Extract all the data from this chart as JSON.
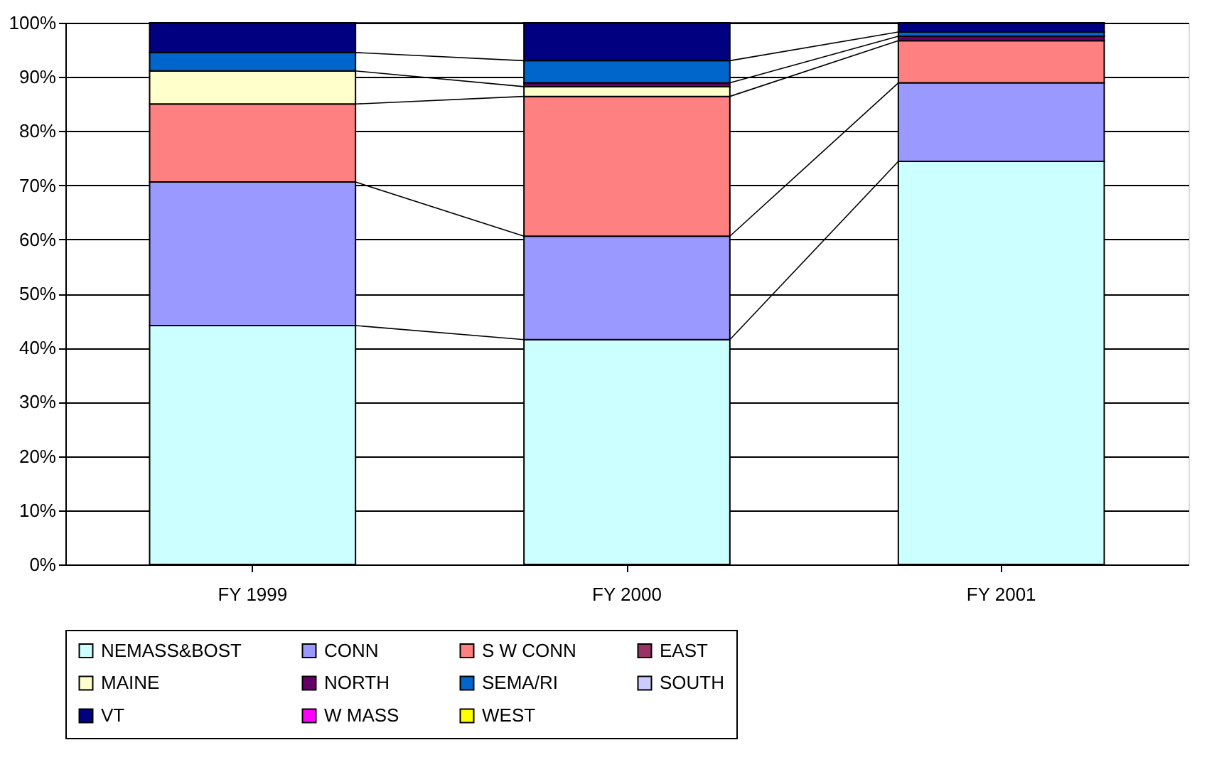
{
  "chart_data": {
    "type": "bar",
    "stacked": true,
    "categories": [
      "FY 1999",
      "FY 2000",
      "FY 2001"
    ],
    "series": [
      {
        "name": "NEMASS&BOST",
        "color": "#ccffff",
        "values": [
          44.1,
          41.5,
          74.4
        ]
      },
      {
        "name": "CONN",
        "color": "#9999ff",
        "values": [
          26.5,
          19.1,
          14.5
        ]
      },
      {
        "name": "S W CONN",
        "color": "#ff8080",
        "values": [
          14.4,
          25.8,
          7.8
        ]
      },
      {
        "name": "EAST",
        "color": "#993366",
        "values": [
          null,
          null,
          null
        ]
      },
      {
        "name": "MAINE",
        "color": "#ffffcc",
        "values": [
          6.1,
          1.8,
          null
        ]
      },
      {
        "name": "NORTH",
        "color": "#660066",
        "values": [
          null,
          0.7,
          0.8
        ]
      },
      {
        "name": "SEMA/RI",
        "color": "#0066cc",
        "values": [
          3.4,
          4.1,
          0.8
        ]
      },
      {
        "name": "SOUTH",
        "color": "#ccccff",
        "values": [
          null,
          null,
          null
        ]
      },
      {
        "name": "VT",
        "color": "#000080",
        "values": [
          5.5,
          7.0,
          1.7
        ]
      },
      {
        "name": "W MASS",
        "color": "#ff00ff",
        "values": [
          null,
          null,
          null
        ]
      },
      {
        "name": "WEST",
        "color": "#ffff00",
        "values": [
          null,
          null,
          null
        ]
      }
    ],
    "ylim": [
      0,
      100
    ],
    "yticks": [
      {
        "value": 0,
        "label": "0%"
      },
      {
        "value": 10,
        "label": "10%"
      },
      {
        "value": 20,
        "label": "20%"
      },
      {
        "value": 30,
        "label": "30%"
      },
      {
        "value": 40,
        "label": "40%"
      },
      {
        "value": 50,
        "label": "50%"
      },
      {
        "value": 60,
        "label": "60%"
      },
      {
        "value": 70,
        "label": "70%"
      },
      {
        "value": 80,
        "label": "80%"
      },
      {
        "value": 90,
        "label": "90%"
      },
      {
        "value": 100,
        "label": "100%"
      }
    ],
    "grid": "y",
    "legend": "bottom"
  }
}
